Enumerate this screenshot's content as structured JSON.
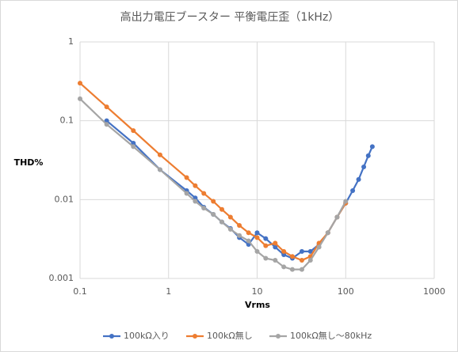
{
  "chart_data": {
    "type": "line",
    "title": "高出力電圧ブースター 平衡電圧歪（1kHz）",
    "x_label": "Vrms",
    "y_label": "THD%",
    "log_x": true,
    "log_y": true,
    "grid": true,
    "legend": "bottom",
    "xlim": [
      0.1,
      1000
    ],
    "xticks": [
      0.1,
      1,
      10,
      100,
      1000
    ],
    "ylim": [
      0.001,
      1
    ],
    "yticks": [
      0.001,
      0.01,
      0.1,
      1
    ],
    "series": [
      {
        "name": "100kΩ入り",
        "color": "#4472c4",
        "x": [
          0.2,
          0.4,
          0.8,
          1.6,
          2,
          2.5,
          3.2,
          4,
          5,
          6.3,
          8,
          10,
          12.5,
          16,
          20,
          25,
          32,
          40,
          50,
          63,
          80,
          100,
          120,
          140,
          160,
          180,
          200
        ],
        "values": [
          0.1,
          0.052,
          0.024,
          0.013,
          0.0105,
          0.008,
          0.0065,
          0.0052,
          0.0043,
          0.0033,
          0.0027,
          0.0038,
          0.0032,
          0.0025,
          0.002,
          0.0018,
          0.0022,
          0.0022,
          0.0027,
          0.0038,
          0.006,
          0.009,
          0.013,
          0.018,
          0.026,
          0.036,
          0.047
        ]
      },
      {
        "name": "100kΩ無し",
        "color": "#ed7d31",
        "x": [
          0.1,
          0.2,
          0.4,
          0.8,
          1.6,
          2,
          2.5,
          3.2,
          4,
          5,
          6.3,
          8,
          10,
          12.5,
          16,
          20,
          25,
          32,
          40,
          50,
          63,
          80,
          100
        ],
        "values": [
          0.3,
          0.15,
          0.075,
          0.037,
          0.019,
          0.015,
          0.012,
          0.0095,
          0.0075,
          0.006,
          0.0047,
          0.0038,
          0.0033,
          0.0026,
          0.0028,
          0.0022,
          0.0019,
          0.0017,
          0.0019,
          0.0028,
          0.0038,
          0.006,
          0.009
        ]
      },
      {
        "name": "100kΩ無し～80kHz",
        "color": "#a5a5a5",
        "x": [
          0.1,
          0.2,
          0.4,
          0.8,
          1.6,
          2,
          2.5,
          3.2,
          4,
          5,
          6.3,
          8,
          10,
          12.5,
          16,
          20,
          25,
          32,
          40,
          50,
          63,
          80,
          100
        ],
        "values": [
          0.19,
          0.09,
          0.047,
          0.024,
          0.012,
          0.0095,
          0.0078,
          0.0065,
          0.0052,
          0.0042,
          0.0035,
          0.003,
          0.0022,
          0.0018,
          0.0017,
          0.0014,
          0.0013,
          0.0013,
          0.0017,
          0.0025,
          0.0038,
          0.006,
          0.0095
        ]
      }
    ]
  }
}
